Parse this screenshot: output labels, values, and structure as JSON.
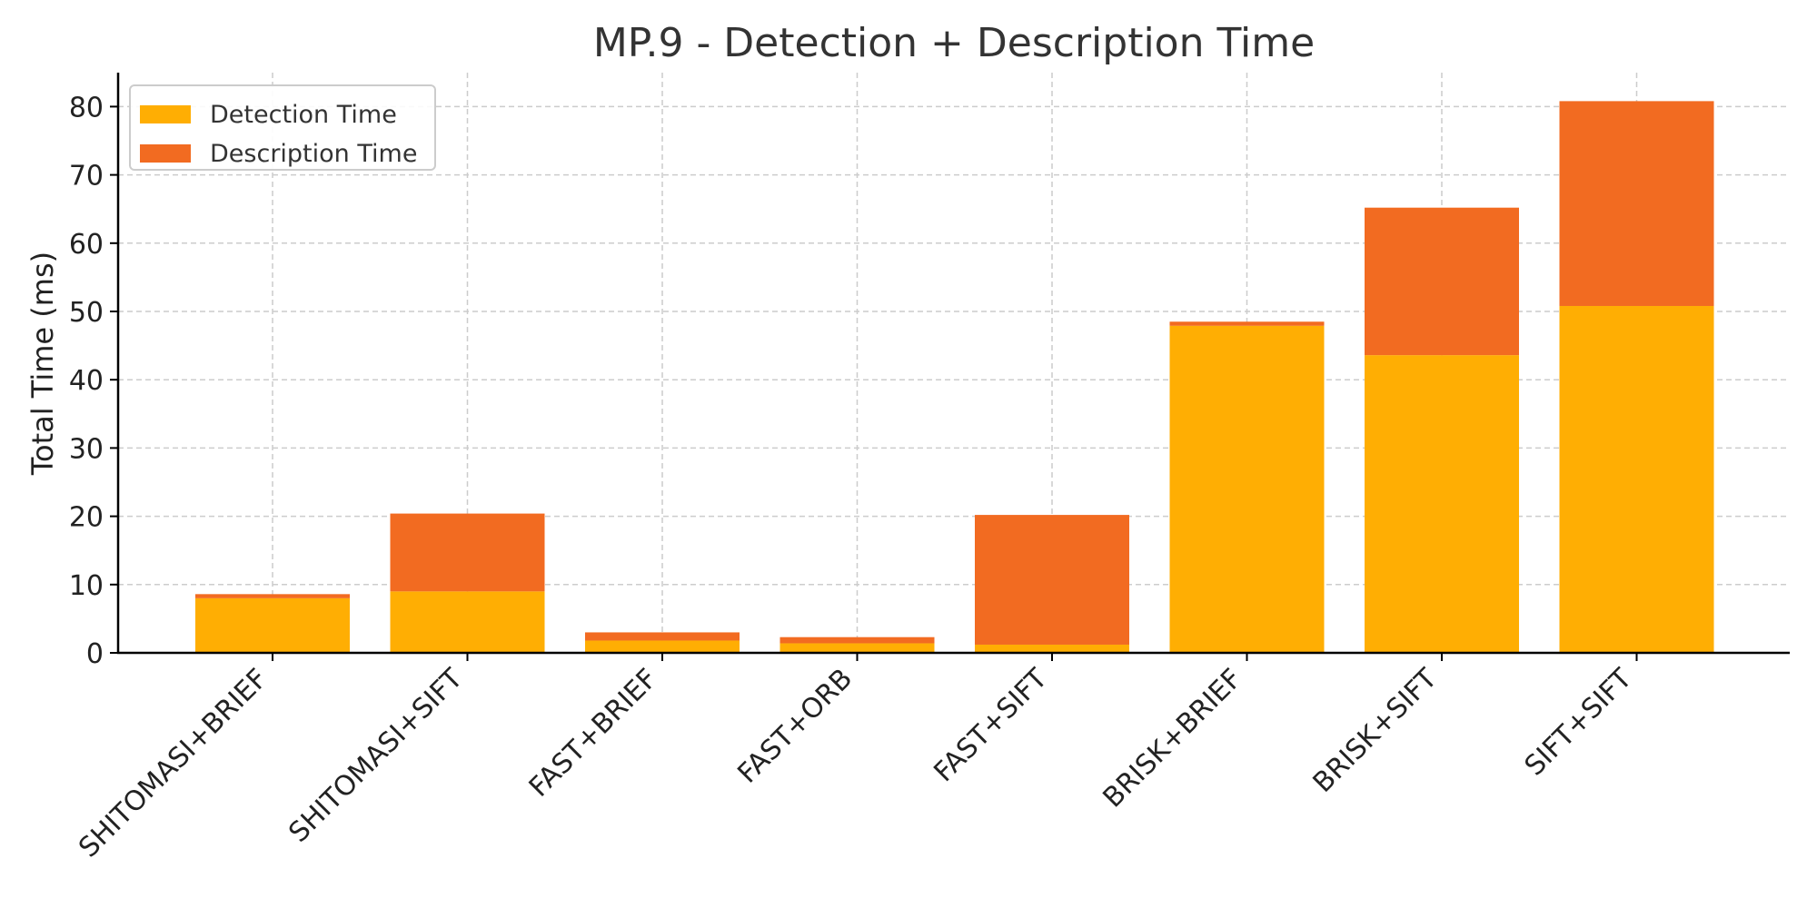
{
  "chart_data": {
    "type": "bar",
    "stacked": true,
    "title": "MP.9 - Detection + Description Time",
    "xlabel": "",
    "ylabel": "Total Time (ms)",
    "ylim": [
      0,
      85
    ],
    "yticks": [
      0,
      10,
      20,
      30,
      40,
      50,
      60,
      70,
      80
    ],
    "grid": true,
    "legend_position": "top-left",
    "categories": [
      "SHITOMASI+BRIEF",
      "SHITOMASI+SIFT",
      "FAST+BRIEF",
      "FAST+ORB",
      "FAST+SIFT",
      "BRISK+BRIEF",
      "BRISK+SIFT",
      "SIFT+SIFT"
    ],
    "series": [
      {
        "name": "Detection Time",
        "color": "#FFAE03",
        "values": [
          8.0,
          9.0,
          1.8,
          1.4,
          1.2,
          47.9,
          43.6,
          50.8
        ]
      },
      {
        "name": "Description Time",
        "color": "#F26B21",
        "values": [
          0.6,
          11.4,
          1.2,
          0.9,
          19.0,
          0.6,
          21.6,
          30.0
        ]
      }
    ]
  }
}
